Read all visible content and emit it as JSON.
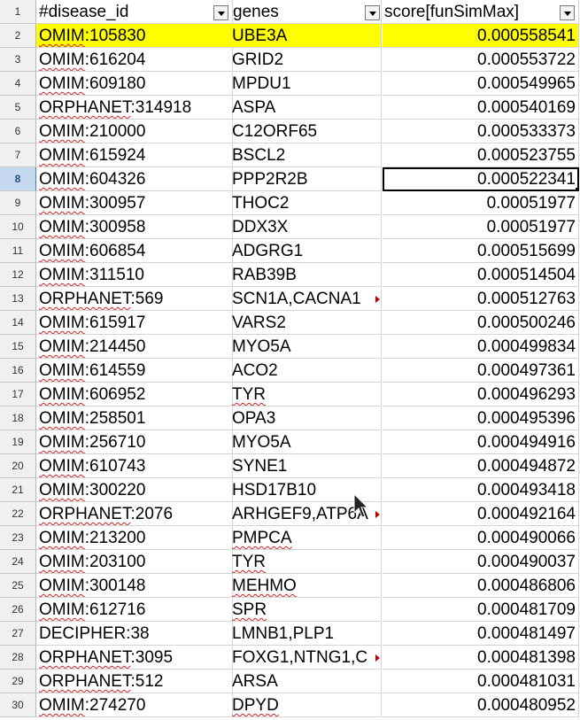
{
  "columns": [
    "#disease_id",
    "genes",
    "score[funSimMax]"
  ],
  "header_row_number": "1",
  "active_row_number": "8",
  "rows": [
    {
      "n": "2",
      "id": "OMIM:105830",
      "genes": "UBE3A",
      "score": "0.000558541"
    },
    {
      "n": "3",
      "id": "OMIM:616204",
      "genes": "GRID2",
      "score": "0.000553722"
    },
    {
      "n": "4",
      "id": "OMIM:609180",
      "genes": "MPDU1",
      "score": "0.000549965"
    },
    {
      "n": "5",
      "id": "ORPHANET:314918",
      "genes": "ASPA",
      "score": "0.000540169"
    },
    {
      "n": "6",
      "id": "OMIM:210000",
      "genes": "C12ORF65",
      "score": "0.000533373"
    },
    {
      "n": "7",
      "id": "OMIM:615924",
      "genes": "BSCL2",
      "score": "0.000523755"
    },
    {
      "n": "8",
      "id": "OMIM:604326",
      "genes": "PPP2R2B",
      "score": "0.000522341"
    },
    {
      "n": "9",
      "id": "OMIM:300957",
      "genes": "THOC2",
      "score": "0.00051977"
    },
    {
      "n": "10",
      "id": "OMIM:300958",
      "genes": "DDX3X",
      "score": "0.00051977"
    },
    {
      "n": "11",
      "id": "OMIM:606854",
      "genes": "ADGRG1",
      "score": "0.000515699"
    },
    {
      "n": "12",
      "id": "OMIM:311510",
      "genes": "RAB39B",
      "score": "0.000514504"
    },
    {
      "n": "13",
      "id": "ORPHANET:569",
      "genes": "SCN1A,CACNA1",
      "score": "0.000512763"
    },
    {
      "n": "14",
      "id": "OMIM:615917",
      "genes": "VARS2",
      "score": "0.000500246"
    },
    {
      "n": "15",
      "id": "OMIM:214450",
      "genes": "MYO5A",
      "score": "0.000499834"
    },
    {
      "n": "16",
      "id": "OMIM:614559",
      "genes": "ACO2",
      "score": "0.000497361"
    },
    {
      "n": "17",
      "id": "OMIM:606952",
      "genes": "TYR",
      "score": "0.000496293"
    },
    {
      "n": "18",
      "id": "OMIM:258501",
      "genes": "OPA3",
      "score": "0.000495396"
    },
    {
      "n": "19",
      "id": "OMIM:256710",
      "genes": "MYO5A",
      "score": "0.000494916"
    },
    {
      "n": "20",
      "id": "OMIM:610743",
      "genes": "SYNE1",
      "score": "0.000494872"
    },
    {
      "n": "21",
      "id": "OMIM:300220",
      "genes": "HSD17B10",
      "score": "0.000493418"
    },
    {
      "n": "22",
      "id": "ORPHANET:2076",
      "genes": "ARHGEF9,ATP6A",
      "score": "0.000492164"
    },
    {
      "n": "23",
      "id": "OMIM:213200",
      "genes": "PMPCA",
      "score": "0.000490066"
    },
    {
      "n": "24",
      "id": "OMIM:203100",
      "genes": "TYR",
      "score": "0.000490037"
    },
    {
      "n": "25",
      "id": "OMIM:300148",
      "genes": "MEHMO",
      "score": "0.000486806"
    },
    {
      "n": "26",
      "id": "OMIM:612716",
      "genes": "SPR",
      "score": "0.000481709"
    },
    {
      "n": "27",
      "id": "DECIPHER:38",
      "genes": "LMNB1,PLP1",
      "score": "0.000481497"
    },
    {
      "n": "28",
      "id": "ORPHANET:3095",
      "genes": "FOXG1,NTNG1,C",
      "score": "0.000481398"
    },
    {
      "n": "29",
      "id": "ORPHANET:512",
      "genes": "ARSA",
      "score": "0.000481031"
    },
    {
      "n": "30",
      "id": "OMIM:274270",
      "genes": "DPYD",
      "score": "0.000480952"
    }
  ],
  "colors": {
    "highlight": "#ffff00",
    "active_row": "#c6d9f1",
    "spell_error": "#d02020"
  }
}
